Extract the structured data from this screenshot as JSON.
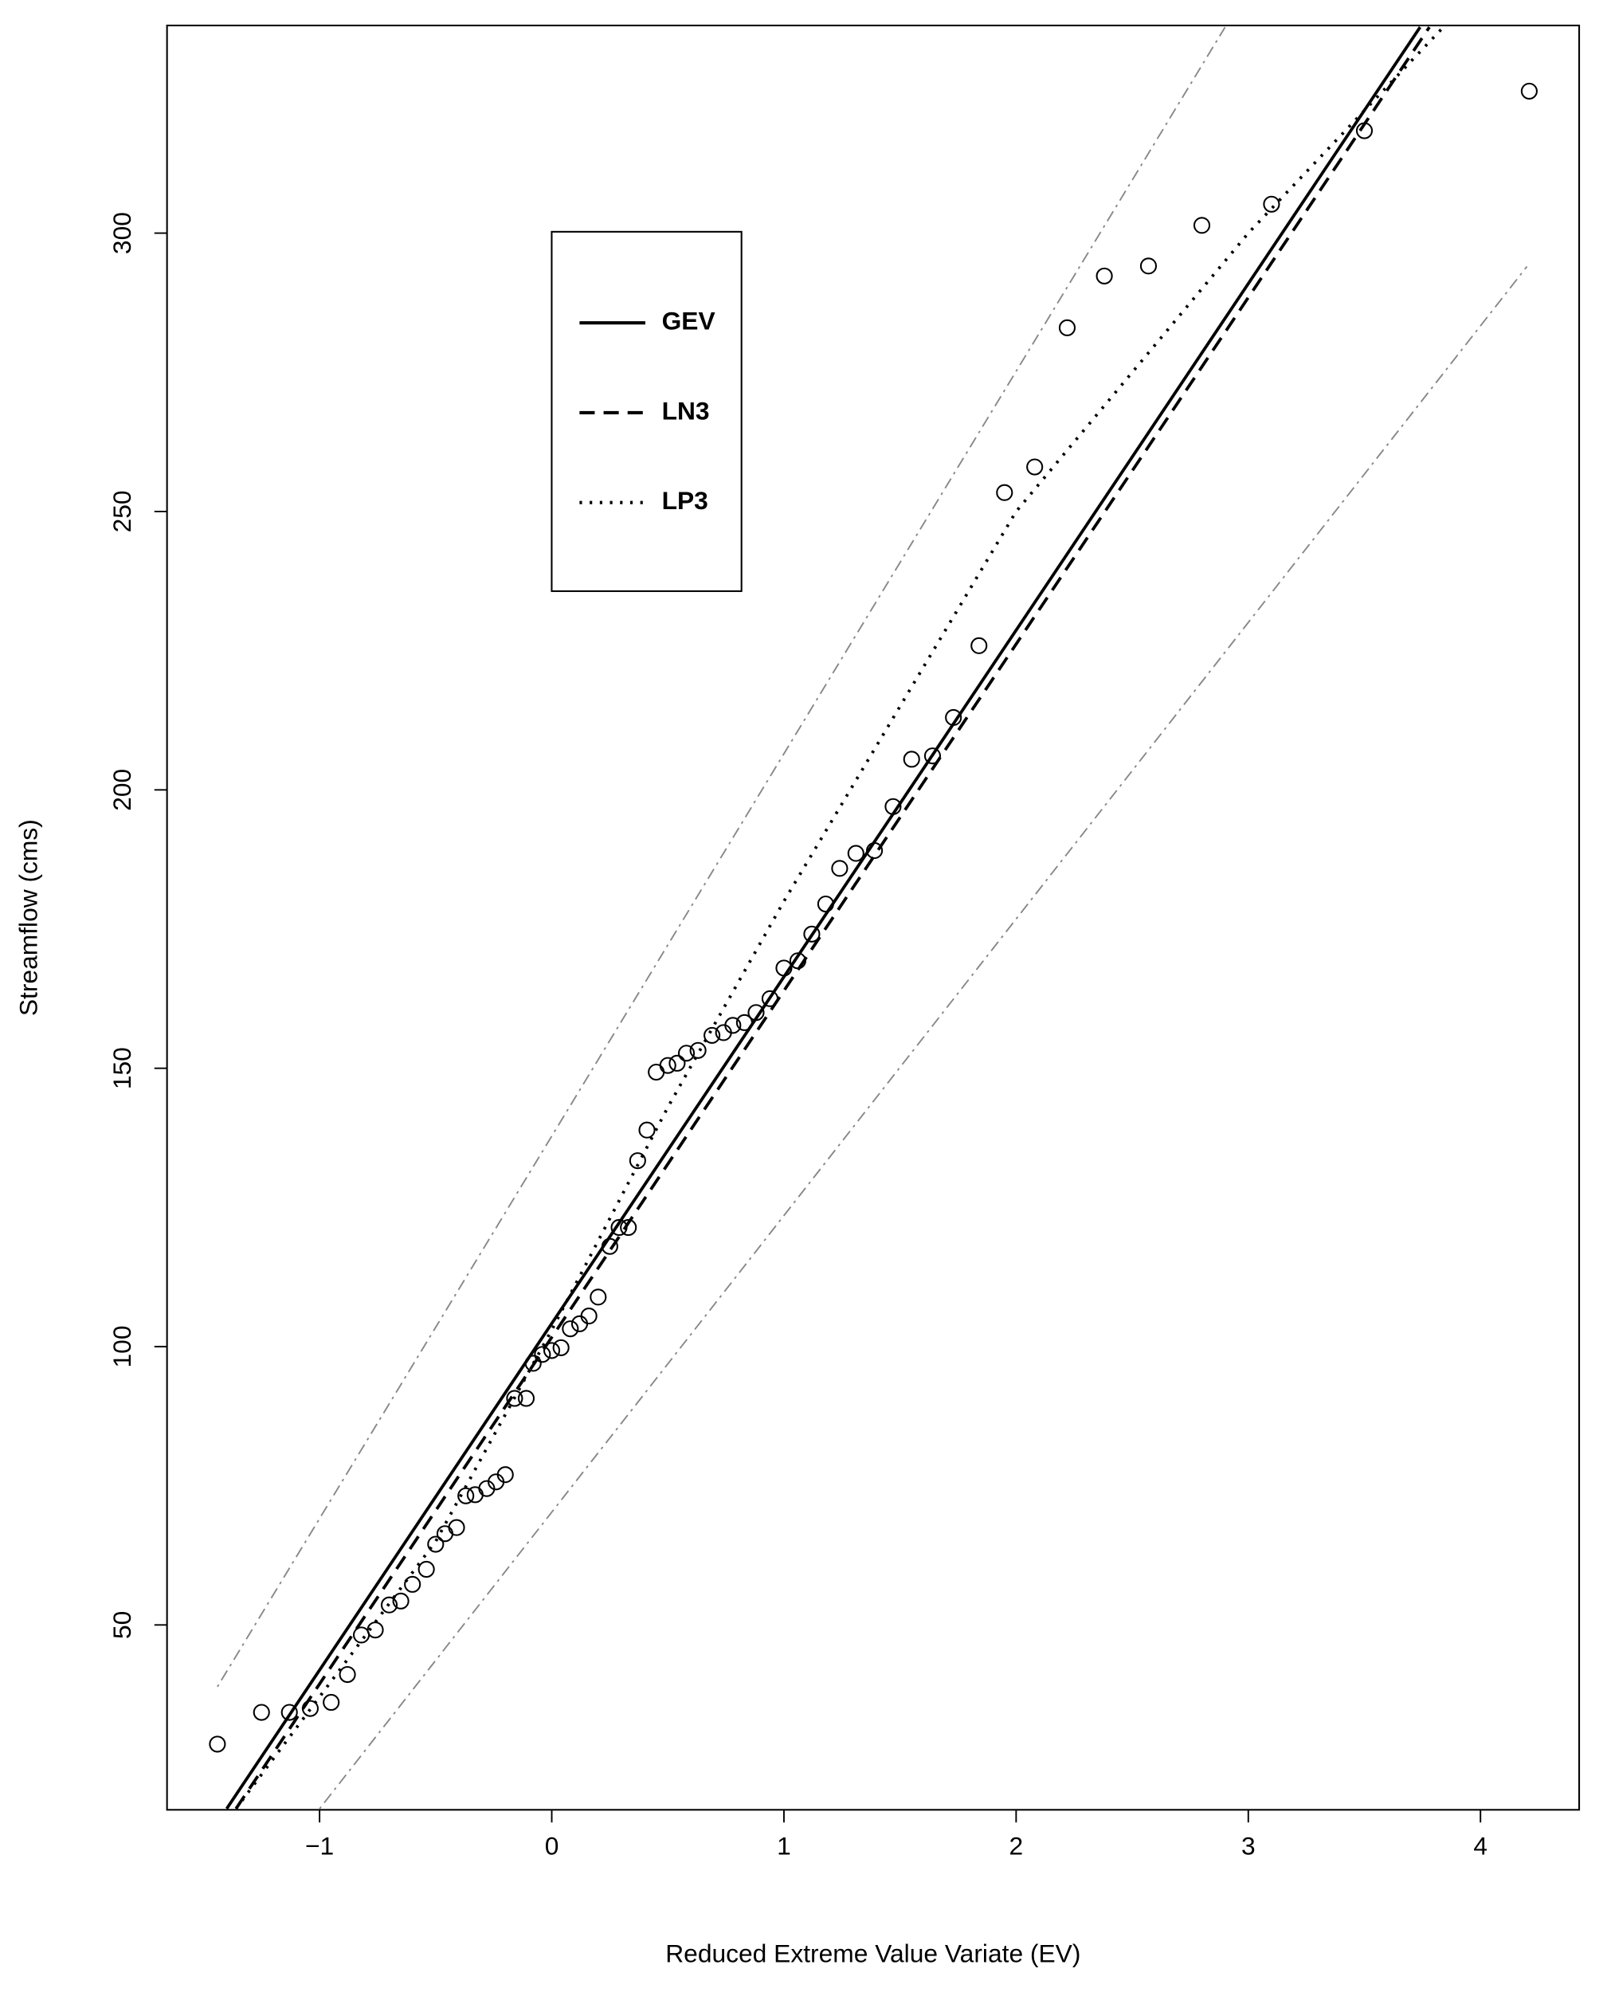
{
  "chart_data": {
    "type": "line",
    "x_label": "Reduced Extreme Value Variate (EV)",
    "y_label": "Streamflow (cms)",
    "xlim": [
      -1.657,
      4.425
    ],
    "ylim": [
      16.8,
      337.3
    ],
    "xticks": [
      {
        "value": -1,
        "label": "−1"
      },
      0,
      1,
      2,
      3,
      4
    ],
    "yticks": [
      50,
      100,
      150,
      200,
      250,
      300
    ],
    "legend": "upper-left",
    "series": [
      {
        "name": "GEV",
        "color": "#000000",
        "style": "solid",
        "x": [
          -1.4,
          3.74
        ],
        "values": [
          17,
          337
        ]
      },
      {
        "name": "LN3",
        "color": "#000000",
        "style": "dashed",
        "x": [
          -1.36,
          3.78
        ],
        "values": [
          17,
          337
        ]
      },
      {
        "name": "LP3",
        "color": "#000000",
        "style": "dotted",
        "x": [
          -1.36,
          -0.5,
          0,
          0.5,
          1,
          2,
          3,
          3.84
        ],
        "values": [
          17,
          65,
          103,
          143,
          180,
          250,
          300,
          337
        ]
      },
      {
        "color": "#888888",
        "style": "dashdot",
        "x": [
          -1.44,
          2.9
        ],
        "values": [
          38.9,
          337
        ]
      },
      {
        "color": "#888888",
        "style": "dashdot",
        "x": [
          -1.0,
          4.2
        ],
        "values": [
          17,
          294
        ]
      },
      {
        "color": "#000000",
        "style": "points",
        "x": [
          -1.44,
          -1.25,
          -1.13,
          -1.04,
          -0.95,
          -0.88,
          -0.82,
          -0.76,
          -0.7,
          -0.65,
          -0.6,
          -0.54,
          -0.5,
          -0.46,
          -0.41,
          -0.37,
          -0.33,
          -0.28,
          -0.24,
          -0.2,
          -0.16,
          -0.11,
          -0.08,
          -0.04,
          0,
          0.04,
          0.08,
          0.12,
          0.16,
          0.2,
          0.25,
          0.29,
          0.33,
          0.37,
          0.41,
          0.45,
          0.5,
          0.54,
          0.58,
          0.63,
          0.69,
          0.74,
          0.78,
          0.83,
          0.88,
          0.94,
          1.0,
          1.06,
          1.12,
          1.18,
          1.24,
          1.31,
          1.39,
          1.47,
          1.55,
          1.64,
          1.73,
          1.84,
          1.95,
          2.08,
          2.22,
          2.38,
          2.57,
          2.8,
          3.1,
          3.5,
          4.21
        ],
        "values": [
          28.6,
          34.3,
          34.3,
          35,
          36.1,
          41.1,
          48.2,
          49.1,
          53.6,
          54.3,
          57.3,
          60,
          64.5,
          66.4,
          67.5,
          73.2,
          73.4,
          74.5,
          75.7,
          77,
          90.7,
          90.7,
          97,
          98.6,
          99.3,
          99.8,
          103.2,
          104.1,
          105.5,
          108.9,
          118,
          121.4,
          121.4,
          133.4,
          138.9,
          149.3,
          150.5,
          150.9,
          152.7,
          153.2,
          155.9,
          156.4,
          157.7,
          158.2,
          160,
          162.5,
          168,
          169.3,
          174.1,
          179.5,
          185.9,
          188.6,
          189.1,
          197,
          205.5,
          206.1,
          213,
          225.9,
          253.4,
          258,
          283,
          292.3,
          294.1,
          301.4,
          305.2,
          318.4,
          325.5
        ]
      }
    ]
  }
}
